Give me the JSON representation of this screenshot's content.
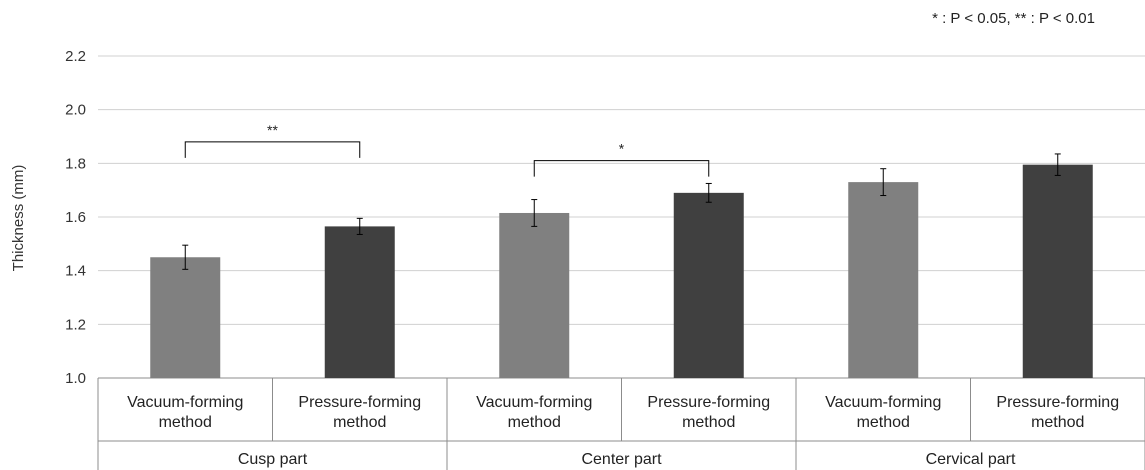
{
  "chart_data": {
    "type": "bar",
    "ylabel": "Thickness (mm)",
    "ylim": [
      1.0,
      2.2
    ],
    "yticks": [
      "1.0",
      "1.2",
      "1.4",
      "1.6",
      "1.8",
      "2.0",
      "2.2"
    ],
    "grid": true,
    "note": "* : P < 0.05, ** : P < 0.01",
    "groups": [
      "Cusp part",
      "Center part",
      "Cervical part"
    ],
    "categories": [
      [
        "Vacuum-forming",
        "method"
      ],
      [
        "Pressure-forming",
        "method"
      ],
      [
        "Vacuum-forming",
        "method"
      ],
      [
        "Pressure-forming",
        "method"
      ],
      [
        "Vacuum-forming",
        "method"
      ],
      [
        "Pressure-forming",
        "method"
      ]
    ],
    "values": [
      1.45,
      1.565,
      1.615,
      1.69,
      1.73,
      1.795
    ],
    "errors": [
      0.045,
      0.03,
      0.05,
      0.035,
      0.05,
      0.04
    ],
    "bar_colors": [
      "#808080",
      "#404040",
      "#808080",
      "#404040",
      "#808080",
      "#404040"
    ],
    "significance": [
      {
        "from": 0,
        "to": 1,
        "y": 1.88,
        "label": "**"
      },
      {
        "from": 2,
        "to": 3,
        "y": 1.81,
        "label": "*"
      }
    ]
  }
}
